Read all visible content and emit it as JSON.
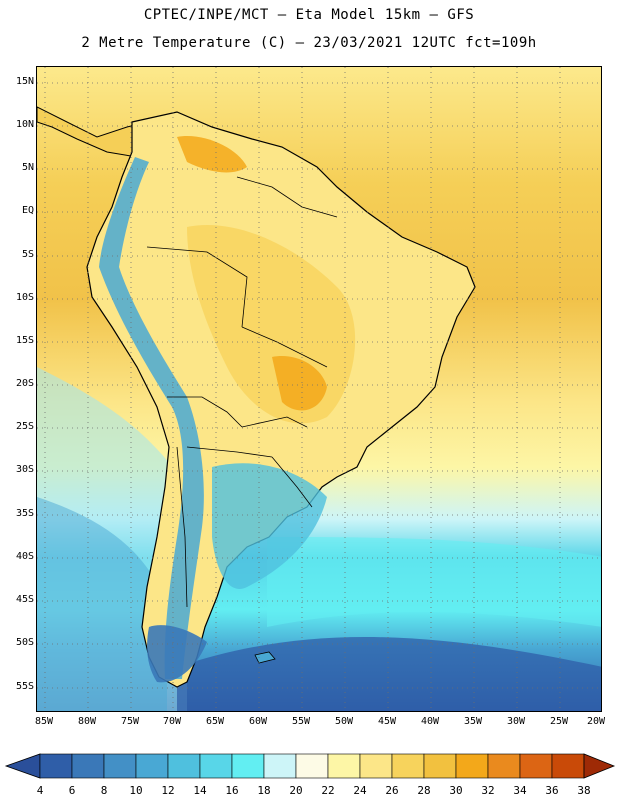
{
  "header": {
    "line1": "CPTEC/INPE/MCT –  Eta Model 15km – GFS",
    "line2": "2 Metre Temperature (C) – 23/03/2021 12UTC fct=109h"
  },
  "map": {
    "lat_labels": [
      "15N",
      "10N",
      "5N",
      "EQ",
      "5S",
      "10S",
      "15S",
      "20S",
      "25S",
      "30S",
      "35S",
      "40S",
      "45S",
      "50S",
      "55S"
    ],
    "lon_labels": [
      "85W",
      "80W",
      "75W",
      "70W",
      "65W",
      "60W",
      "55W",
      "50W",
      "45W",
      "40W",
      "35W",
      "30W",
      "25W",
      "20W"
    ],
    "grid": "dotted",
    "extent": {
      "west": -86,
      "east": -20,
      "south": -58,
      "north": 17
    }
  },
  "colorbar": {
    "levels": [
      "4",
      "6",
      "8",
      "10",
      "12",
      "14",
      "16",
      "18",
      "20",
      "22",
      "24",
      "26",
      "28",
      "30",
      "32",
      "34",
      "36",
      "38"
    ],
    "colors": [
      "#2f5ea8",
      "#3a78b8",
      "#4390c6",
      "#49a8d4",
      "#4fc0de",
      "#58d6e8",
      "#62eef2",
      "#cdf5f8",
      "#fdfbe6",
      "#fdf6a6",
      "#fce688",
      "#f7d35c",
      "#f2c13f",
      "#f3a81a",
      "#ea8a1e",
      "#dc6514",
      "#c94a08",
      "#b43008"
    ],
    "under_color": "#2a4f9a",
    "over_color": "#9e2a06"
  }
}
